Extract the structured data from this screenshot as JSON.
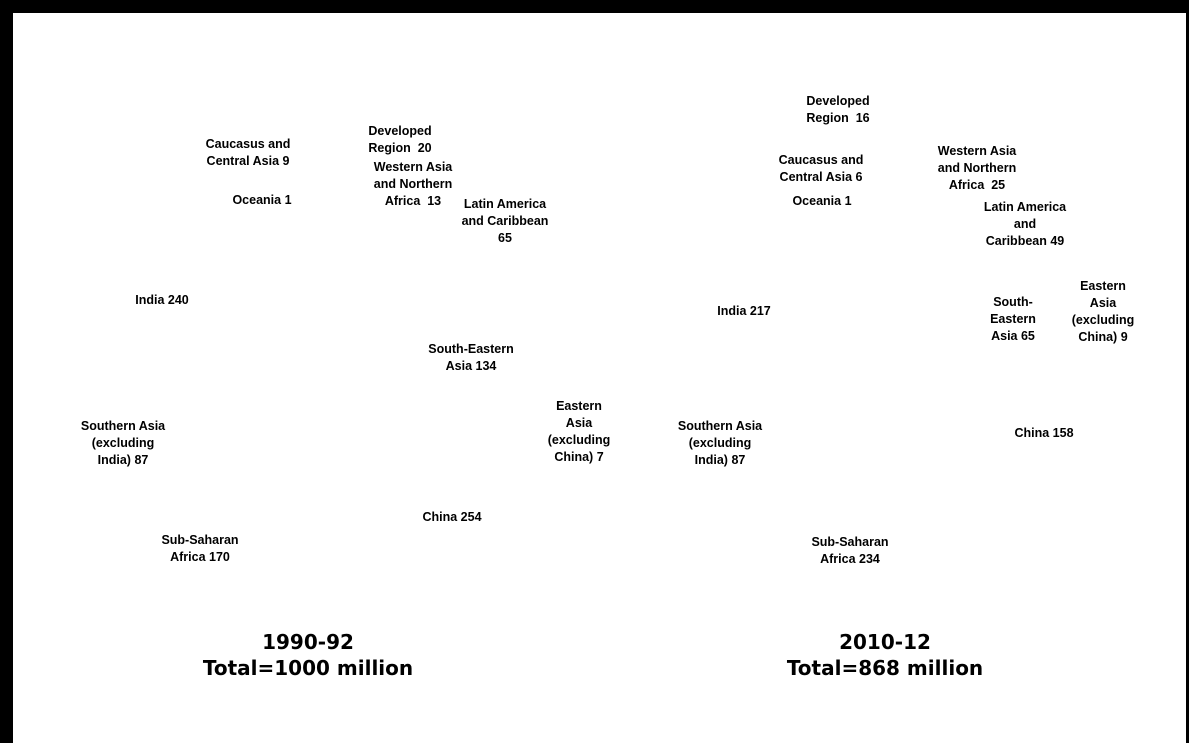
{
  "chart_data": [
    {
      "type": "pie",
      "title": "1990-92",
      "subtitle": "Total=1000 million",
      "unit": "million",
      "total": 1000,
      "slices": [
        {
          "label": "Developed\nRegion  20",
          "name": "Developed Region",
          "value": 20
        },
        {
          "label": "Caucasus and\nCentral Asia 9",
          "name": "Caucasus and Central Asia",
          "value": 9
        },
        {
          "label": "Western Asia\nand Northern\nAfrica  13",
          "name": "Western Asia and Northern Africa",
          "value": 13
        },
        {
          "label": "Oceania 1",
          "name": "Oceania",
          "value": 1
        },
        {
          "label": "Latin America\nand Caribbean\n65",
          "name": "Latin America and Caribbean",
          "value": 65
        },
        {
          "label": "India 240",
          "name": "India",
          "value": 240
        },
        {
          "label": "South-Eastern\nAsia 134",
          "name": "South-Eastern Asia",
          "value": 134
        },
        {
          "label": "Eastern\nAsia\n(excluding\nChina) 7",
          "name": "Eastern Asia (excluding China)",
          "value": 7
        },
        {
          "label": "Southern Asia\n(excluding\nIndia) 87",
          "name": "Southern Asia (excluding India)",
          "value": 87
        },
        {
          "label": "China 254",
          "name": "China",
          "value": 254
        },
        {
          "label": "Sub-Saharan\nAfrica 170",
          "name": "Sub-Saharan Africa",
          "value": 170
        }
      ]
    },
    {
      "type": "pie",
      "title": "2010-12",
      "subtitle": "Total=868 million",
      "unit": "million",
      "total": 868,
      "slices": [
        {
          "label": "Developed\nRegion  16",
          "name": "Developed Region",
          "value": 16
        },
        {
          "label": "Western Asia\nand Northern\nAfrica  25",
          "name": "Western Asia and Northern Africa",
          "value": 25
        },
        {
          "label": "Caucasus and\nCentral Asia 6",
          "name": "Caucasus and Central Asia",
          "value": 6
        },
        {
          "label": "Oceania 1",
          "name": "Oceania",
          "value": 1
        },
        {
          "label": "Latin America\nand\nCaribbean 49",
          "name": "Latin America and Caribbean",
          "value": 49
        },
        {
          "label": "Eastern\nAsia\n(excluding\nChina) 9",
          "name": "Eastern Asia (excluding China)",
          "value": 9
        },
        {
          "label": "South-\nEastern\nAsia 65",
          "name": "South-Eastern Asia",
          "value": 65
        },
        {
          "label": "India 217",
          "name": "India",
          "value": 217
        },
        {
          "label": "China 158",
          "name": "China",
          "value": 158
        },
        {
          "label": "Southern Asia\n(excluding\nIndia) 87",
          "name": "Southern Asia (excluding India)",
          "value": 87
        },
        {
          "label": "Sub-Saharan\nAfrica 234",
          "name": "Sub-Saharan Africa",
          "value": 234
        }
      ]
    }
  ]
}
